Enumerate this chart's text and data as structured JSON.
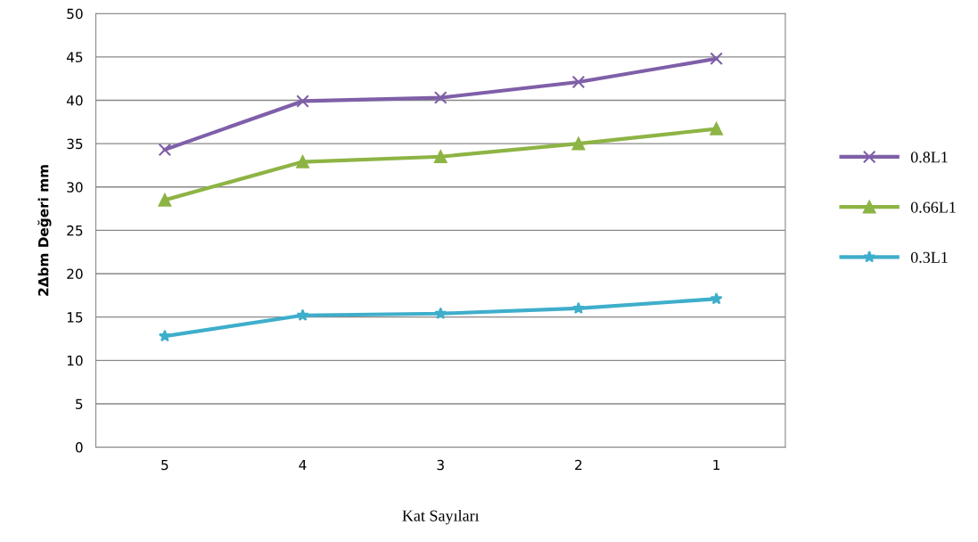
{
  "chart_data": {
    "type": "line",
    "xlabel": "Kat Sayıları",
    "ylabel": "2Δbm Değeri mm",
    "categories": [
      "5",
      "4",
      "3",
      "2",
      "1"
    ],
    "series": [
      {
        "name": "0.8L1",
        "color": "#7f5fa8",
        "marker": "cross",
        "values": [
          34.3,
          39.9,
          40.3,
          42.1,
          44.8
        ]
      },
      {
        "name": "0.66L1",
        "color": "#8db444",
        "marker": "triangle",
        "values": [
          28.5,
          32.9,
          33.5,
          35.0,
          36.7
        ]
      },
      {
        "name": "0.3L1",
        "color": "#3eaecb",
        "marker": "star",
        "values": [
          12.8,
          15.2,
          15.4,
          16.0,
          17.1
        ]
      }
    ],
    "ylim": [
      0,
      50
    ],
    "yticks": [
      0,
      5,
      10,
      15,
      20,
      25,
      30,
      35,
      40,
      45,
      50
    ],
    "grid": "y",
    "legend": "right",
    "line_style": "solid"
  }
}
